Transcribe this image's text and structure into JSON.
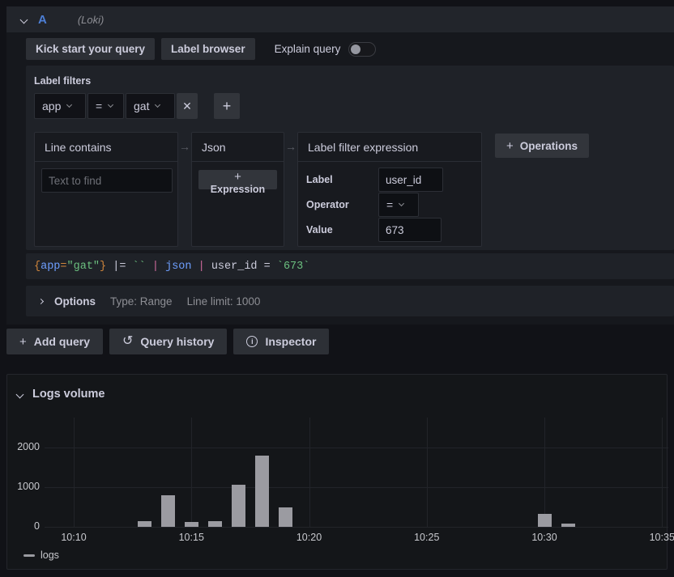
{
  "query_row": {
    "ref_id": "A",
    "datasource": "(Loki)",
    "toolbar": {
      "kick_start": "Kick start your query",
      "label_browser": "Label browser",
      "explain": "Explain query"
    },
    "label_filters": {
      "title": "Label filters",
      "label": "app",
      "operator": "=",
      "value": "gat",
      "remove": "✕",
      "add": "+"
    },
    "pipeline": {
      "line_contains": {
        "title": "Line contains",
        "placeholder": "Text to find",
        "value": ""
      },
      "json": {
        "title": "Json",
        "expression_btn": "Expression"
      },
      "label_filter_expression": {
        "title": "Label filter expression",
        "label_label": "Label",
        "label_value": "user_id",
        "operator_label": "Operator",
        "operator_value": "=",
        "value_label": "Value",
        "value_value": "673"
      },
      "operations_btn": "Operations"
    },
    "query_tokens": [
      {
        "t": "{",
        "c": "brace"
      },
      {
        "t": "app",
        "c": "label"
      },
      {
        "t": "=",
        "c": "op"
      },
      {
        "t": "\"gat\"",
        "c": "string"
      },
      {
        "t": "}",
        "c": "brace"
      },
      {
        "t": " |= ",
        "c": "plain"
      },
      {
        "t": "``",
        "c": "string"
      },
      {
        "t": " ",
        "c": "plain"
      },
      {
        "t": "|",
        "c": "pipe"
      },
      {
        "t": " ",
        "c": "plain"
      },
      {
        "t": "json",
        "c": "keyword"
      },
      {
        "t": " ",
        "c": "plain"
      },
      {
        "t": "|",
        "c": "pipe"
      },
      {
        "t": " user_id = ",
        "c": "plain"
      },
      {
        "t": "`673`",
        "c": "string"
      }
    ],
    "options": {
      "title": "Options",
      "type": "Type: Range",
      "line_limit": "Line limit: 1000"
    },
    "actions": {
      "add_query": "Add query",
      "query_history": "Query history",
      "inspector": "Inspector"
    }
  },
  "icons": {
    "plus": "+",
    "arrow_right": "→",
    "history": "↺",
    "info": "i",
    "close": "✕"
  },
  "logs_volume": {
    "title": "Logs volume"
  },
  "chart_data": {
    "type": "bar",
    "title": "Logs volume",
    "xlabel": "",
    "ylabel": "",
    "bar_color": "#9b9ba1",
    "grid": true,
    "legend_position": "bottom-left",
    "legend": [
      "logs"
    ],
    "x_axis": {
      "ticks": [
        "10:10",
        "10:15",
        "10:20",
        "10:25",
        "10:30",
        "10:35"
      ],
      "tick_minutes": [
        0,
        5,
        10,
        15,
        20,
        25
      ]
    },
    "y_axis": {
      "ticks": [
        0,
        1000,
        2000
      ],
      "max": 2750
    },
    "series": [
      {
        "name": "logs",
        "points": [
          {
            "time": "10:13",
            "minute": 3,
            "value": 140
          },
          {
            "time": "10:14",
            "minute": 4,
            "value": 800
          },
          {
            "time": "10:15",
            "minute": 5,
            "value": 130
          },
          {
            "time": "10:16",
            "minute": 6,
            "value": 150
          },
          {
            "time": "10:17",
            "minute": 7,
            "value": 1070
          },
          {
            "time": "10:18",
            "minute": 8,
            "value": 1800
          },
          {
            "time": "10:19",
            "minute": 9,
            "value": 490
          },
          {
            "time": "10:30",
            "minute": 20,
            "value": 330
          },
          {
            "time": "10:31",
            "minute": 21,
            "value": 80
          }
        ]
      }
    ]
  }
}
